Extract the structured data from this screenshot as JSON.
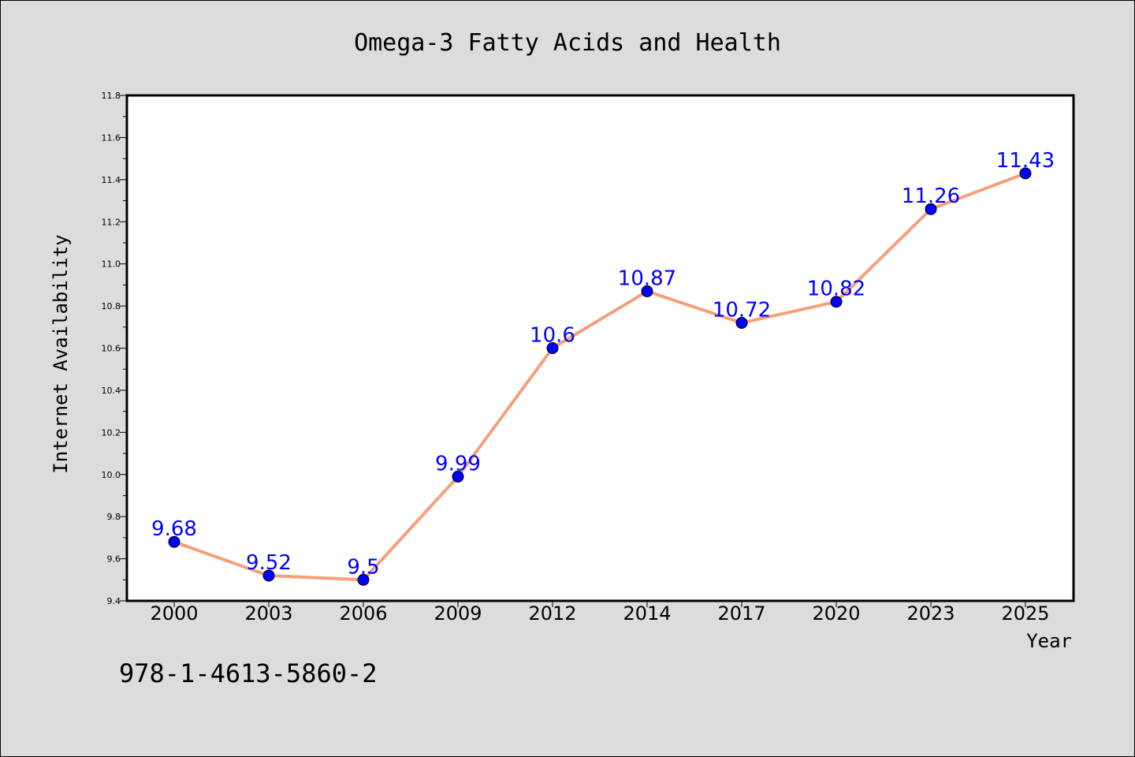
{
  "chart_data": {
    "type": "line",
    "title": "Omega-3 Fatty Acids and Health",
    "xlabel": "Year",
    "ylabel": "Internet Availability",
    "categories": [
      "2000",
      "2003",
      "2006",
      "2009",
      "2012",
      "2014",
      "2017",
      "2020",
      "2023",
      "2025"
    ],
    "series": [
      {
        "values": [
          9.68,
          9.52,
          9.5,
          9.99,
          10.6,
          10.87,
          10.72,
          10.82,
          11.26,
          11.43
        ],
        "data_labels": [
          "9.68",
          "9.52",
          "9.5",
          "9.99",
          "10.6",
          "10.87",
          "10.72",
          "10.82",
          "11.26",
          "11.43"
        ],
        "line_color": "#f4a07a",
        "marker_color": "#0000ff"
      }
    ],
    "ylim": [
      9.4,
      11.8
    ],
    "yticks": [
      "9.4",
      "9.6",
      "9.8",
      "10.0",
      "10.2",
      "10.4",
      "10.6",
      "10.8",
      "11.0",
      "11.2",
      "11.4",
      "11.6",
      "11.8"
    ],
    "grid": false,
    "legend": "none"
  },
  "footer_text": "978-1-4613-5860-2",
  "colors": {
    "background": "#dcdcdc",
    "plot_background": "#ffffff",
    "data_label": "#0000ff"
  }
}
